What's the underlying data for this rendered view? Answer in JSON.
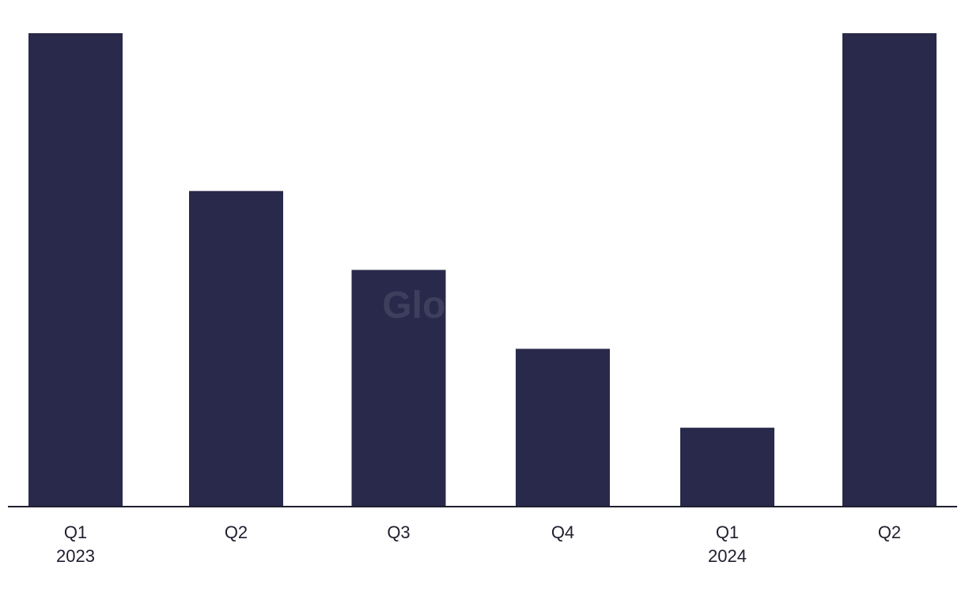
{
  "chart_data": {
    "type": "bar",
    "categories": [
      "Q1",
      "Q2",
      "Q3",
      "Q4",
      "Q1",
      "Q2"
    ],
    "year_labels": [
      "2023",
      "",
      "",
      "",
      "2024",
      ""
    ],
    "values": [
      6,
      4,
      3,
      2,
      1,
      6
    ],
    "ylim": [
      0,
      6
    ],
    "grid": false,
    "legend": "none",
    "bar_color": "#29294b",
    "axis_color": "#1f1f2e"
  },
  "watermark": {
    "text": "GlobalData"
  }
}
